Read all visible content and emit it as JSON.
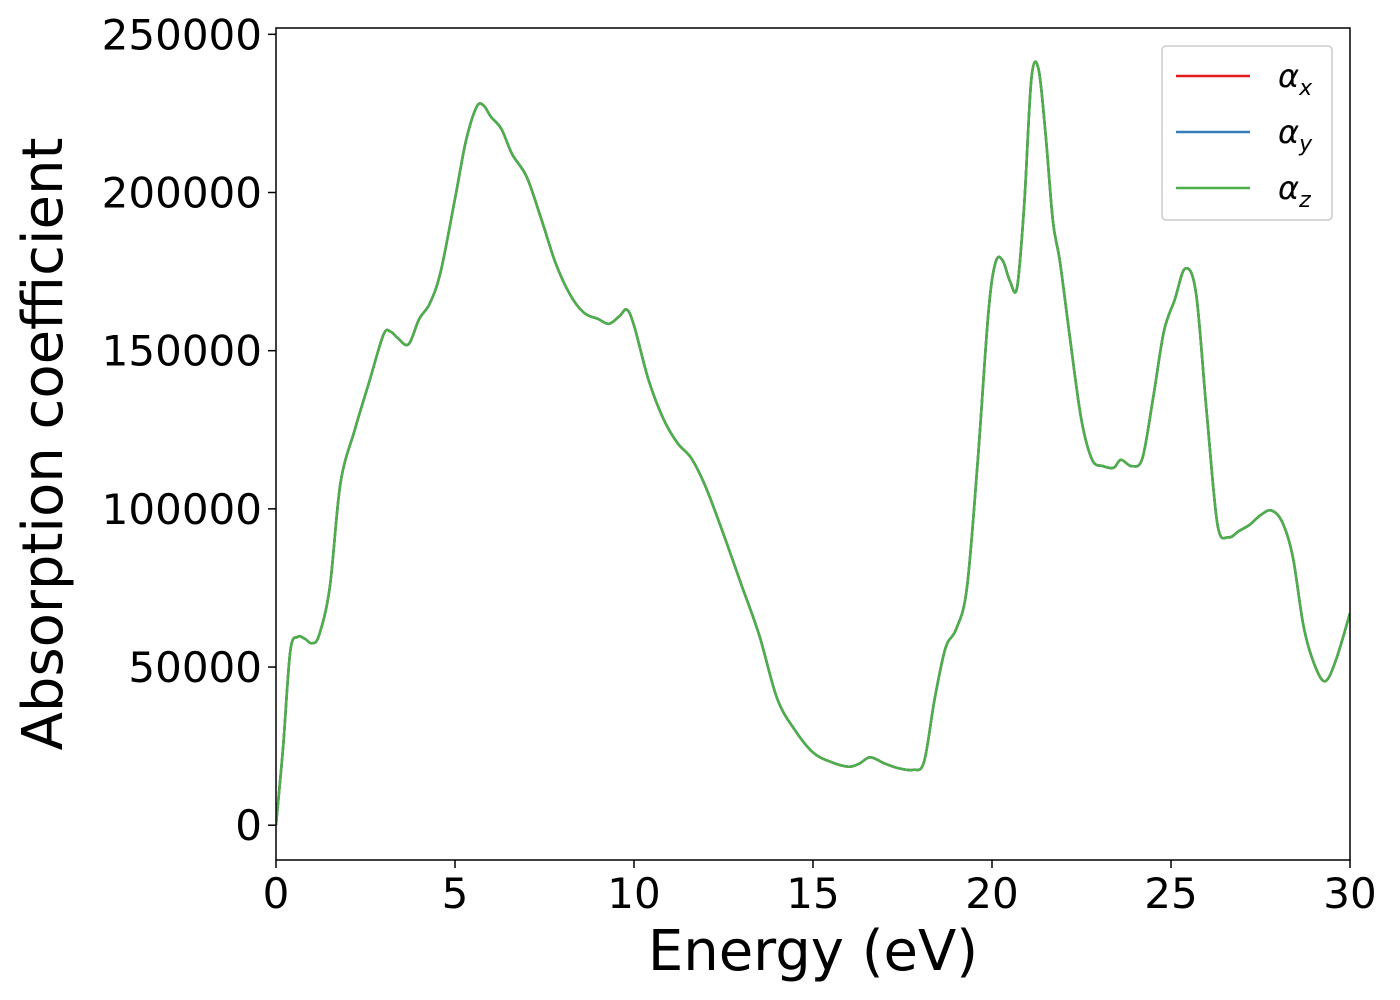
{
  "chart_data": {
    "type": "line",
    "title": "",
    "xlabel": "Energy (eV)",
    "ylabel": "Absorption coefficient",
    "xlim": [
      0,
      30
    ],
    "ylim": [
      -11000,
      252000
    ],
    "xticks": [
      0,
      5,
      10,
      15,
      20,
      25,
      30
    ],
    "yticks": [
      0,
      50000,
      100000,
      150000,
      200000,
      250000
    ],
    "xtick_labels": [
      "0",
      "5",
      "10",
      "15",
      "20",
      "25",
      "30"
    ],
    "ytick_labels": [
      "0",
      "50000",
      "100000",
      "150000",
      "200000",
      "250000"
    ],
    "grid": false,
    "legend_position": "top-right",
    "series": [
      {
        "name": "α_x",
        "symbol": "α",
        "subscript": "x",
        "color": "#e41a1c"
      },
      {
        "name": "α_y",
        "symbol": "α",
        "subscript": "y",
        "color": "#377eb8"
      },
      {
        "name": "α_z",
        "symbol": "α",
        "subscript": "z",
        "color": "#4daf4a"
      }
    ],
    "x": [
      0,
      0.2,
      0.4,
      0.6,
      0.8,
      1.0,
      1.2,
      1.5,
      1.8,
      2.2,
      2.6,
      3.0,
      3.2,
      3.4,
      3.7,
      4.0,
      4.3,
      4.6,
      5.0,
      5.3,
      5.6,
      5.8,
      6.0,
      6.3,
      6.6,
      7.0,
      7.4,
      7.8,
      8.2,
      8.6,
      9.0,
      9.3,
      9.6,
      9.8,
      10.0,
      10.4,
      10.8,
      11.2,
      11.6,
      12.0,
      12.5,
      13.0,
      13.5,
      14.0,
      14.5,
      15.0,
      15.5,
      16.0,
      16.3,
      16.6,
      17.0,
      17.4,
      17.8,
      18.1,
      18.4,
      18.7,
      19.0,
      19.3,
      19.6,
      19.9,
      20.1,
      20.3,
      20.5,
      20.7,
      20.9,
      21.1,
      21.3,
      21.5,
      21.7,
      21.9,
      22.2,
      22.5,
      22.8,
      23.1,
      23.4,
      23.6,
      23.9,
      24.2,
      24.5,
      24.8,
      25.1,
      25.4,
      25.7,
      26.0,
      26.3,
      26.6,
      26.9,
      27.2,
      27.5,
      27.8,
      28.1,
      28.4,
      28.7,
      29.0,
      29.3,
      29.6,
      30.0
    ],
    "values": [
      0,
      25000,
      55000,
      59500,
      59000,
      57500,
      60000,
      75000,
      108000,
      125000,
      140000,
      155000,
      156000,
      154000,
      152000,
      160000,
      165000,
      175000,
      198000,
      216000,
      227000,
      227500,
      224000,
      220000,
      212000,
      205000,
      192000,
      178000,
      168000,
      162000,
      160000,
      158500,
      161000,
      163000,
      158000,
      141000,
      129000,
      121000,
      116000,
      107000,
      92000,
      76000,
      60000,
      40000,
      30000,
      23000,
      20000,
      18500,
      19500,
      21500,
      19500,
      18000,
      17500,
      20000,
      40000,
      56000,
      62000,
      75000,
      115000,
      162000,
      178000,
      178500,
      172000,
      170000,
      196000,
      236000,
      239000,
      218000,
      191000,
      178000,
      152000,
      128000,
      115500,
      113500,
      113000,
      115500,
      113500,
      116000,
      135000,
      156000,
      166000,
      176000,
      168000,
      130000,
      95000,
      91000,
      93000,
      95000,
      98000,
      99500,
      96000,
      85000,
      63000,
      51000,
      45500,
      52000,
      67000
    ]
  }
}
